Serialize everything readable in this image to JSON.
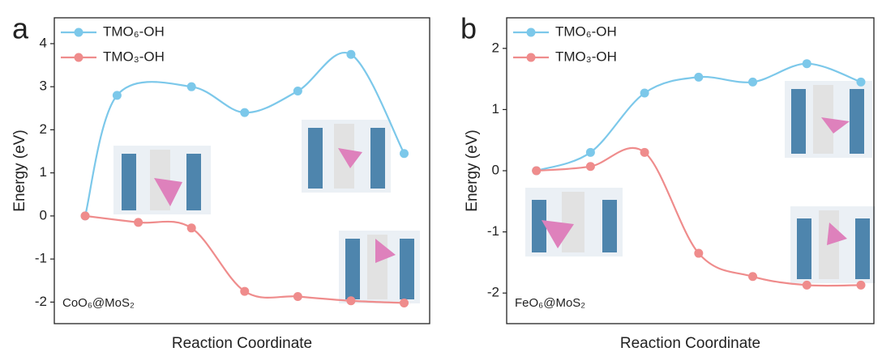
{
  "chart_data": [
    {
      "type": "line",
      "panel_label": "a",
      "ylabel": "Energy (eV)",
      "xlabel": "Reaction Coordinate",
      "annotation": "CoO₆@MoS₂",
      "xlim": [
        -0.58,
        6.48
      ],
      "ylim": [
        -2.5,
        4.6
      ],
      "yticks": [
        -2,
        -1,
        0,
        1,
        2,
        3,
        4
      ],
      "legend": "upper left",
      "series": [
        {
          "name": "TMO₆-OH",
          "color": "#7cc8ea",
          "x": [
            0,
            0.6,
            2,
            3,
            4,
            5,
            6
          ],
          "values": [
            0,
            2.8,
            3.0,
            2.4,
            2.9,
            3.75,
            1.45
          ]
        },
        {
          "name": "TMO₃-OH",
          "color": "#ef8c8c",
          "x": [
            0,
            1,
            2,
            3,
            4,
            5,
            6
          ],
          "values": [
            0,
            -0.15,
            -0.28,
            -1.75,
            -1.87,
            -1.97,
            -2.02
          ]
        }
      ]
    },
    {
      "type": "line",
      "panel_label": "b",
      "ylabel": "Energy (eV)",
      "xlabel": "Reaction Coordinate",
      "annotation": "FeO₆@MoS₂",
      "xlim": [
        -0.55,
        6.24
      ],
      "ylim": [
        -2.5,
        2.5
      ],
      "yticks": [
        -2,
        -1,
        0,
        1,
        2
      ],
      "legend": "upper left",
      "series": [
        {
          "name": "TMO₆-OH",
          "color": "#7cc8ea",
          "x": [
            0,
            1,
            2,
            3,
            4,
            5,
            6
          ],
          "values": [
            0,
            0.3,
            1.27,
            1.53,
            1.45,
            1.75,
            1.45
          ]
        },
        {
          "name": "TMO₃-OH",
          "color": "#ef8c8c",
          "x": [
            0,
            1,
            2,
            3,
            4,
            5,
            6
          ],
          "values": [
            0,
            0.07,
            0.3,
            -1.35,
            -1.73,
            -1.87,
            -1.87
          ]
        }
      ]
    }
  ]
}
